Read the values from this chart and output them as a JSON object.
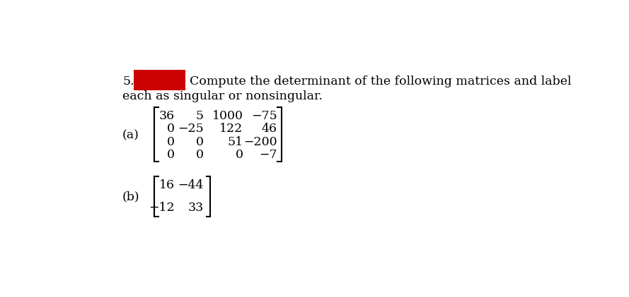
{
  "problem_number": "5.",
  "header_text": "Compute the determinant of the following matrices and label",
  "subheader_text": "each as singular or nonsingular.",
  "part_a_label": "(a)",
  "part_b_label": "(b)",
  "matrix_a": [
    [
      "36",
      "5",
      "1000",
      "−75"
    ],
    [
      "0",
      "−25",
      "122",
      "46"
    ],
    [
      "0",
      "0",
      "51",
      "−200"
    ],
    [
      "0",
      "0",
      "0",
      "−7"
    ]
  ],
  "matrix_b": [
    [
      "16",
      "−44"
    ],
    [
      "−12",
      "33"
    ]
  ],
  "background_color": "#ffffff",
  "text_color": "#000000",
  "redbox_color": "#cc0000",
  "font_size_header": 12.5,
  "font_size_matrix": 12.5
}
